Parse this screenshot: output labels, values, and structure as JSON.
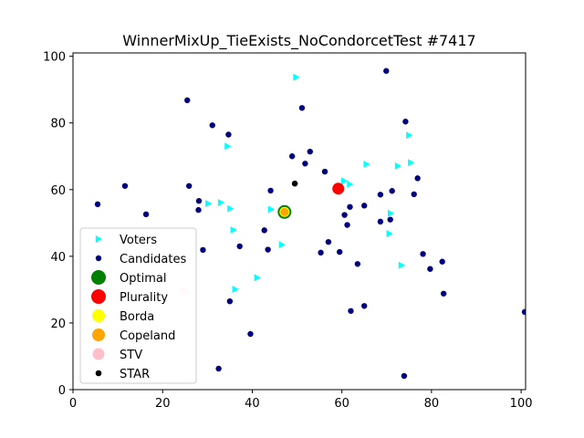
{
  "chart_data": {
    "type": "scatter",
    "title": "WinnerMixUp_TieExists_NoCondorcetTest #7417",
    "xlim": [
      0,
      101
    ],
    "ylim": [
      0,
      101
    ],
    "xticks": [
      0,
      20,
      40,
      60,
      80,
      100
    ],
    "yticks": [
      0,
      20,
      40,
      60,
      80,
      100
    ],
    "legend_position": "lower-left",
    "series": [
      {
        "name": "Voters",
        "marker": "triangle-right",
        "color": "#00ffff",
        "points": [
          [
            49.8,
            93.7
          ],
          [
            34.5,
            73.0
          ],
          [
            75.0,
            76.3
          ],
          [
            75.4,
            68.1
          ],
          [
            72.5,
            67.1
          ],
          [
            65.5,
            67.6
          ],
          [
            60.5,
            62.6
          ],
          [
            61.8,
            61.6
          ],
          [
            33.0,
            56.1
          ],
          [
            30.2,
            55.8
          ],
          [
            35.1,
            54.3
          ],
          [
            44.2,
            54.1
          ],
          [
            70.9,
            52.9
          ],
          [
            35.8,
            47.9
          ],
          [
            70.6,
            46.8
          ],
          [
            46.6,
            43.5
          ],
          [
            73.3,
            37.3
          ],
          [
            41.1,
            33.6
          ],
          [
            36.2,
            30.1
          ]
        ]
      },
      {
        "name": "Candidates",
        "marker": "circle",
        "color": "#000080",
        "points": [
          [
            5.5,
            55.6
          ],
          [
            11.6,
            61.1
          ],
          [
            16.3,
            52.6
          ],
          [
            25.5,
            86.8
          ],
          [
            25.9,
            61.1
          ],
          [
            28.1,
            56.6
          ],
          [
            28.0,
            53.9
          ],
          [
            29.0,
            41.9
          ],
          [
            31.1,
            79.3
          ],
          [
            34.7,
            76.5
          ],
          [
            37.2,
            43.0
          ],
          [
            39.6,
            16.7
          ],
          [
            42.7,
            47.8
          ],
          [
            43.5,
            42.0
          ],
          [
            44.1,
            59.7
          ],
          [
            48.9,
            70.0
          ],
          [
            51.1,
            84.5
          ],
          [
            51.8,
            67.8
          ],
          [
            52.9,
            71.4
          ],
          [
            56.2,
            65.4
          ],
          [
            57.0,
            44.3
          ],
          [
            55.3,
            41.1
          ],
          [
            59.5,
            41.3
          ],
          [
            60.6,
            52.4
          ],
          [
            61.2,
            49.4
          ],
          [
            61.8,
            54.8
          ],
          [
            62.0,
            23.6
          ],
          [
            63.5,
            37.7
          ],
          [
            65.0,
            55.2
          ],
          [
            65.0,
            25.1
          ],
          [
            68.6,
            58.5
          ],
          [
            68.6,
            50.4
          ],
          [
            69.9,
            95.6
          ],
          [
            70.8,
            51.0
          ],
          [
            71.2,
            59.6
          ],
          [
            74.2,
            80.4
          ],
          [
            76.1,
            58.6
          ],
          [
            76.9,
            63.4
          ],
          [
            78.1,
            40.7
          ],
          [
            79.7,
            36.2
          ],
          [
            82.4,
            38.4
          ],
          [
            82.7,
            28.8
          ],
          [
            73.9,
            4.1
          ],
          [
            100.8,
            23.3
          ],
          [
            32.5,
            6.3
          ],
          [
            35.0,
            26.5
          ]
        ]
      },
      {
        "name": "Optimal",
        "marker": "circle",
        "color": "#008000",
        "points": [
          [
            47.2,
            53.3
          ]
        ]
      },
      {
        "name": "Plurality",
        "marker": "circle",
        "color": "#ff0000",
        "points": [
          [
            59.2,
            60.3
          ]
        ]
      },
      {
        "name": "Borda",
        "marker": "circle",
        "color": "#ffff00",
        "points": [
          [
            47.2,
            53.3
          ]
        ]
      },
      {
        "name": "Copeland",
        "marker": "circle",
        "color": "#ffa500",
        "points": [
          [
            47.2,
            53.3
          ]
        ]
      },
      {
        "name": "STV",
        "marker": "circle",
        "color": "#ffc0cb",
        "points": [
          [
            24.8,
            29.6
          ]
        ]
      },
      {
        "name": "STAR",
        "marker": "circle",
        "color": "#000000",
        "points": [
          [
            49.5,
            61.8
          ]
        ]
      }
    ]
  }
}
